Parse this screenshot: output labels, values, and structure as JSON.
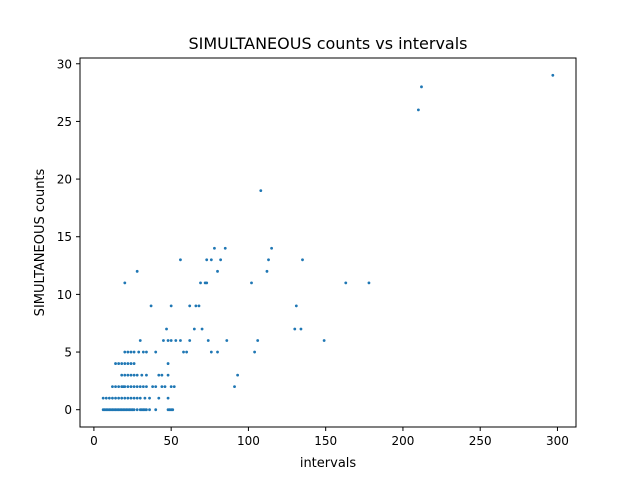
{
  "chart_data": {
    "type": "scatter",
    "title": "SIMULTANEOUS counts vs intervals",
    "xlabel": "intervals",
    "ylabel": "SIMULTANEOUS counts",
    "xlim": [
      -9,
      312
    ],
    "ylim": [
      -1.5,
      30.5
    ],
    "xticks": [
      0,
      50,
      100,
      150,
      200,
      250,
      300
    ],
    "yticks": [
      0,
      5,
      10,
      15,
      20,
      25,
      30
    ],
    "grid": false,
    "marker_color": "#1f77b4",
    "series": [
      {
        "x": [
          6,
          7,
          8,
          9,
          10,
          11,
          12,
          13,
          14,
          15,
          16,
          17,
          18,
          19,
          20,
          21,
          22,
          23,
          24,
          25,
          26,
          28,
          30,
          31,
          32,
          33,
          34,
          36,
          40,
          48,
          49,
          50,
          51,
          6,
          8,
          10,
          12,
          14,
          16,
          18,
          20,
          22,
          24,
          26,
          28,
          30,
          33,
          36,
          42,
          48,
          12,
          14,
          16,
          18,
          19,
          20,
          22,
          24,
          26,
          28,
          30,
          32,
          34,
          38,
          40,
          44,
          46,
          50,
          52,
          18,
          20,
          22,
          24,
          26,
          28,
          31,
          34,
          42,
          44,
          48,
          14,
          16,
          18,
          20,
          22,
          24,
          26,
          48,
          20,
          22,
          24,
          26,
          29,
          32,
          34,
          40,
          58,
          60,
          76,
          80,
          104,
          30,
          45,
          48,
          50,
          53,
          62,
          74,
          86,
          106,
          47,
          65,
          70,
          130,
          134,
          37,
          50,
          62,
          66,
          68,
          131,
          69,
          72,
          102,
          20,
          28,
          56,
          73,
          76,
          80,
          112,
          73,
          78,
          82,
          115,
          85,
          113,
          135,
          108,
          210,
          212,
          297,
          56,
          149,
          163,
          178,
          91,
          93
        ],
        "y": [
          0,
          0,
          0,
          0,
          0,
          0,
          0,
          0,
          0,
          0,
          0,
          0,
          0,
          0,
          0,
          0,
          0,
          0,
          0,
          0,
          0,
          0,
          0,
          0,
          0,
          0,
          0,
          0,
          0,
          0,
          0,
          0,
          0,
          1,
          1,
          1,
          1,
          1,
          1,
          1,
          1,
          1,
          1,
          1,
          1,
          1,
          1,
          1,
          1,
          1,
          2,
          2,
          2,
          2,
          2,
          2,
          2,
          2,
          2,
          2,
          2,
          2,
          2,
          2,
          2,
          2,
          2,
          2,
          2,
          3,
          3,
          3,
          3,
          3,
          3,
          3,
          3,
          3,
          3,
          3,
          4,
          4,
          4,
          4,
          4,
          4,
          4,
          4,
          5,
          5,
          5,
          5,
          5,
          5,
          5,
          5,
          5,
          5,
          5,
          5,
          5,
          6,
          6,
          6,
          6,
          6,
          6,
          6,
          6,
          6,
          7,
          7,
          7,
          7,
          7,
          9,
          9,
          9,
          9,
          9,
          9,
          11,
          11,
          11,
          11,
          12,
          13,
          11,
          13,
          12,
          12,
          13,
          14,
          13,
          14,
          14,
          13,
          13,
          19,
          26,
          28,
          29,
          6,
          6,
          11,
          11,
          2,
          3
        ]
      }
    ]
  }
}
